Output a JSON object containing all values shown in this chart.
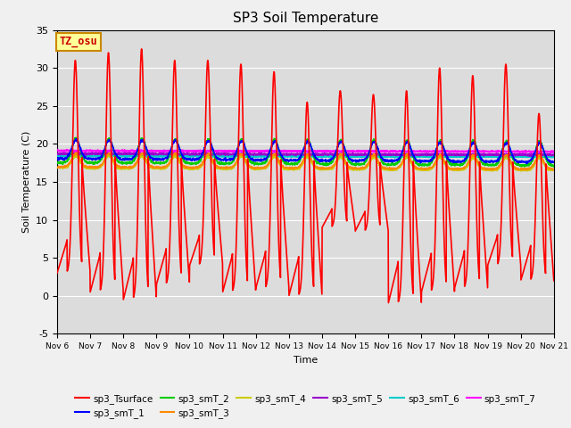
{
  "title": "SP3 Soil Temperature",
  "xlabel": "Time",
  "ylabel": "Soil Temperature (C)",
  "ylim": [
    -5,
    35
  ],
  "background_color": "#dcdcdc",
  "grid_color": "#ffffff",
  "series": {
    "sp3_Tsurface": {
      "color": "#ff0000",
      "lw": 1.2
    },
    "sp3_smT_1": {
      "color": "#0000ff",
      "lw": 1.2
    },
    "sp3_smT_2": {
      "color": "#00cc00",
      "lw": 1.2
    },
    "sp3_smT_3": {
      "color": "#ff8800",
      "lw": 1.2
    },
    "sp3_smT_4": {
      "color": "#cccc00",
      "lw": 1.2
    },
    "sp3_smT_5": {
      "color": "#9900cc",
      "lw": 1.5
    },
    "sp3_smT_6": {
      "color": "#00cccc",
      "lw": 1.5
    },
    "sp3_smT_7": {
      "color": "#ff00ff",
      "lw": 1.5
    }
  },
  "xtick_labels": [
    "Nov 6",
    "Nov 7",
    "Nov 8",
    "Nov 9",
    "Nov 10",
    "Nov 11",
    "Nov 12",
    "Nov 13",
    "Nov 14",
    "Nov 15",
    "Nov 16",
    "Nov 17",
    "Nov 18",
    "Nov 19",
    "Nov 20",
    "Nov 21"
  ],
  "ytick_values": [
    -5,
    0,
    5,
    10,
    15,
    20,
    25,
    30,
    35
  ],
  "annotation_text": "TZ_osu",
  "annotation_color": "#cc0000",
  "annotation_bg": "#ffff99",
  "annotation_border": "#cc8800"
}
